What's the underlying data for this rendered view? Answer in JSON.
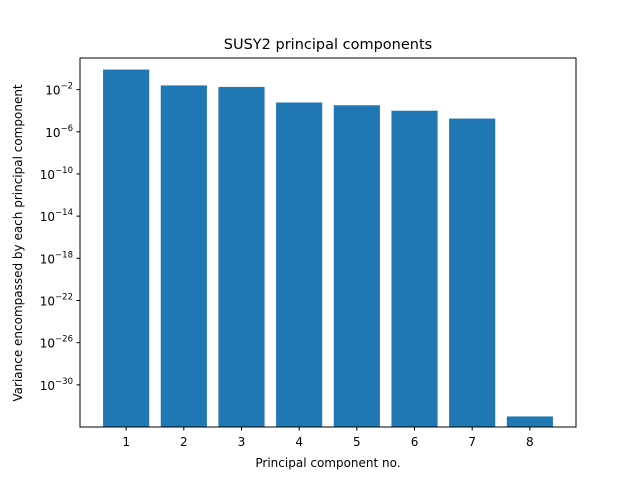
{
  "chart_data": {
    "type": "bar",
    "title": "SUSY2 principal components",
    "xlabel": "Principal component no.",
    "ylabel": "Variance encompassed by each principal component",
    "yscale": "log",
    "categories": [
      "1",
      "2",
      "3",
      "4",
      "5",
      "6",
      "7",
      "8"
    ],
    "values": [
      0.8,
      0.025,
      0.018,
      0.0006,
      0.00033,
      0.0001,
      1.8e-05,
      1e-33
    ],
    "ylim": [
      1e-34,
      10
    ],
    "yticks": [
      {
        "base": "10",
        "exp": "−2",
        "value": 0.01
      },
      {
        "base": "10",
        "exp": "−6",
        "value": 1e-06
      },
      {
        "base": "10",
        "exp": "−10",
        "value": 1e-10
      },
      {
        "base": "10",
        "exp": "−14",
        "value": 1e-14
      },
      {
        "base": "10",
        "exp": "−18",
        "value": 1e-18
      },
      {
        "base": "10",
        "exp": "−22",
        "value": 1e-22
      },
      {
        "base": "10",
        "exp": "−26",
        "value": 1e-26
      },
      {
        "base": "10",
        "exp": "−30",
        "value": 1e-30
      }
    ],
    "bar_color": "#1f77b4",
    "grid": false,
    "legend": "none"
  }
}
